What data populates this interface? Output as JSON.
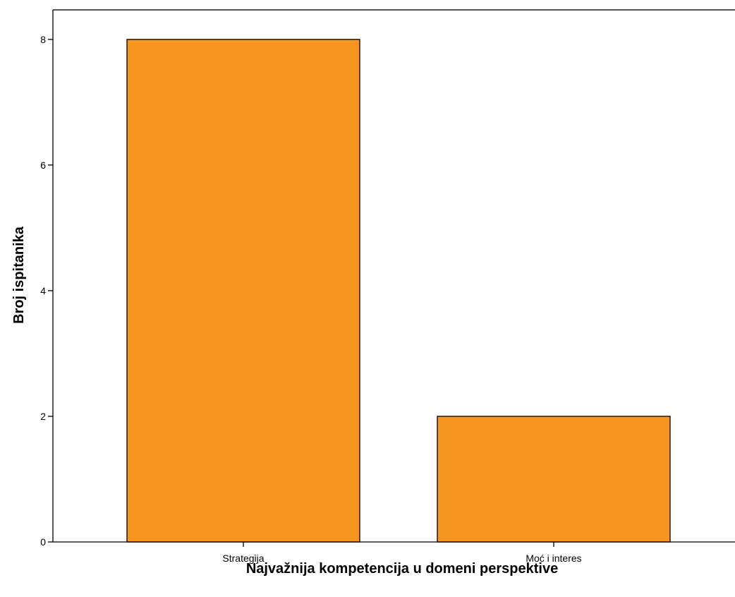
{
  "chart_data": {
    "type": "bar",
    "categories": [
      "Strategija",
      "Moć i interes"
    ],
    "values": [
      8,
      2
    ],
    "xlabel": "Najvažnija kompetencija u domeni perspektive",
    "ylabel": "Broj ispitanika",
    "ylim": [
      0,
      8.47
    ],
    "yticks": [
      0,
      2,
      4,
      6,
      8
    ],
    "grid": false,
    "bar_color": "#F7961E",
    "bar_edge_color": "#000000",
    "frame_color": "#555555"
  }
}
